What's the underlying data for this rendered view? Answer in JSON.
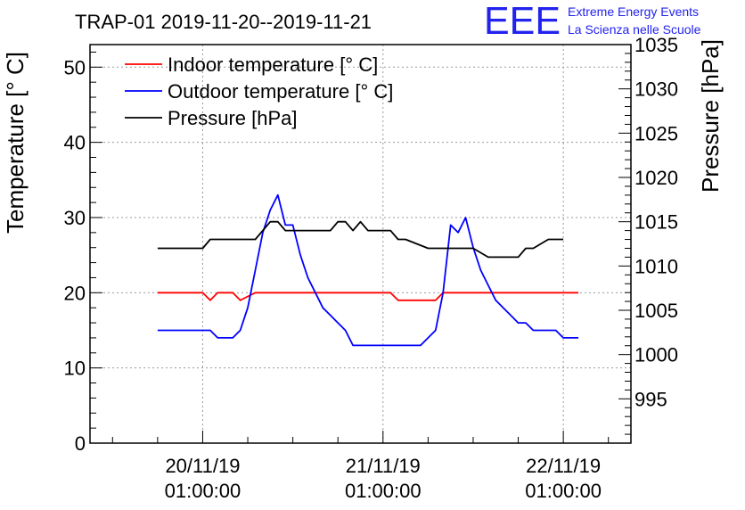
{
  "header": {
    "logo_text": "EEE",
    "org_line1": "Extreme Energy Events",
    "org_line2": "La Scienza nelle Scuole"
  },
  "chart_data": {
    "type": "line",
    "title": "TRAP-01 2019-11-20--2019-11-21",
    "ylabel": "Temperature [° C]",
    "y2label": "Pressure [hPa]",
    "ylim": [
      0,
      53
    ],
    "y2lim": [
      990,
      1035
    ],
    "yticks": [
      "0",
      "10",
      "20",
      "30",
      "40",
      "50"
    ],
    "y2ticks": [
      "995",
      "1000",
      "1005",
      "1010",
      "1015",
      "1020",
      "1025",
      "1030",
      "1035"
    ],
    "x_unit": "hours since 20/11/19 01:00:00",
    "xlim": [
      -15,
      57
    ],
    "xticks": [
      {
        "pos": 0,
        "date": "20/11/19",
        "time": "01:00:00"
      },
      {
        "pos": 24,
        "date": "21/11/19",
        "time": "01:00:00"
      },
      {
        "pos": 48,
        "date": "22/11/19",
        "time": "01:00:00"
      }
    ],
    "series": [
      {
        "name": "Indoor temperature [° C]",
        "color": "#ff0000",
        "axis": "left",
        "x": [
          -6,
          0,
          1,
          2,
          3,
          4,
          5,
          6,
          7,
          8,
          9,
          10,
          14,
          20,
          25,
          26,
          27,
          29,
          31,
          32,
          33,
          34,
          38,
          42,
          46,
          50
        ],
        "y": [
          20,
          20,
          19,
          20,
          20,
          20,
          19,
          19.5,
          20,
          20,
          20,
          20,
          20,
          20,
          20,
          19,
          19,
          19,
          19,
          20,
          20,
          20,
          20,
          20,
          20,
          20
        ]
      },
      {
        "name": "Outdoor temperature [° C]",
        "color": "#0000ff",
        "axis": "left",
        "x": [
          -6,
          -4,
          0,
          1,
          2,
          3,
          4,
          5,
          6,
          7,
          8,
          9,
          10,
          11,
          12,
          13,
          14,
          15,
          16,
          17,
          18,
          19,
          20,
          24,
          28,
          29,
          30,
          31,
          32,
          33,
          34,
          35,
          36,
          37,
          38,
          39,
          40,
          41,
          42,
          43,
          44,
          45,
          46,
          47,
          48,
          49,
          50
        ],
        "y": [
          15,
          15,
          15,
          15,
          14,
          14,
          14,
          15,
          18,
          23,
          28,
          31,
          33,
          29,
          29,
          25,
          22,
          20,
          18,
          17,
          16,
          15,
          13,
          13,
          13,
          13,
          14,
          15,
          20,
          29,
          28,
          30,
          26,
          23,
          21,
          19,
          18,
          17,
          16,
          16,
          15,
          15,
          15,
          15,
          14,
          14,
          14
        ]
      },
      {
        "name": "Pressure [hPa]",
        "color": "#000000",
        "axis": "right",
        "x": [
          -6,
          -4,
          0,
          1,
          2,
          3,
          5,
          6,
          7,
          8,
          9,
          10,
          11,
          12,
          13,
          14,
          15,
          16,
          17,
          18,
          19,
          20,
          21,
          22,
          24,
          25,
          26,
          27,
          30,
          33,
          34,
          35,
          36,
          38,
          40,
          41,
          42,
          43,
          44,
          46,
          48
        ],
        "y": [
          1012,
          1012,
          1012,
          1013,
          1013,
          1013,
          1013,
          1013,
          1013,
          1014,
          1015,
          1015,
          1014,
          1014,
          1014,
          1014,
          1014,
          1014,
          1014,
          1015,
          1015,
          1014,
          1015,
          1014,
          1014,
          1014,
          1013,
          1013,
          1012,
          1012,
          1012,
          1012,
          1012,
          1011,
          1011,
          1011,
          1011,
          1012,
          1012,
          1013,
          1013
        ]
      }
    ],
    "legend": "top-left",
    "grid": true
  }
}
